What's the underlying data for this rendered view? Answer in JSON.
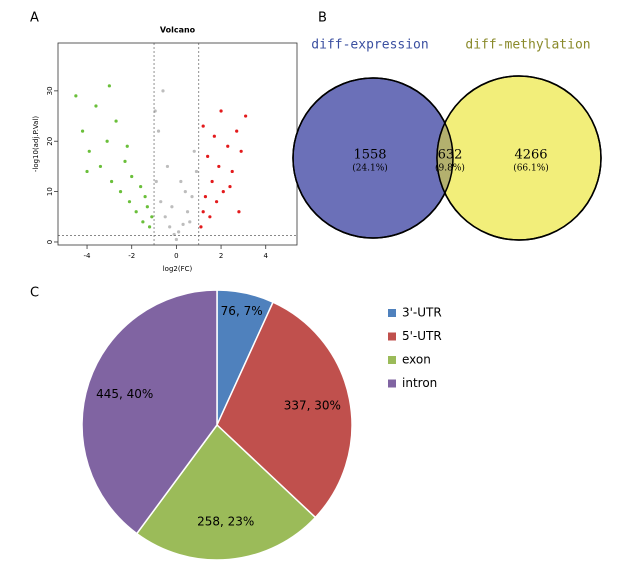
{
  "chart_data": [
    {
      "type": "scatter",
      "panel_label": "A",
      "title": "Volcano",
      "x_label": "log2(FC)",
      "y_label": "-log10(adj.P.Val)",
      "xlim": [
        -5.3,
        5.4
      ],
      "ylim": [
        -0.6,
        39.5
      ],
      "xticks": [
        -4,
        -2,
        0,
        2,
        4
      ],
      "yticks": [
        0,
        10,
        20,
        30
      ],
      "thresholds": {
        "x": [
          -1,
          1
        ],
        "y": 1.3
      },
      "series": [
        {
          "color": "#6abf3a",
          "x": [
            -4.5,
            -4.2,
            -3.9,
            -3.6,
            -3.4,
            -3.1,
            -2.9,
            -2.7,
            -2.5,
            -2.3,
            -2.1,
            -2.0,
            -1.8,
            -1.6,
            -1.5,
            -1.3,
            -1.2,
            -1.1,
            -3.0,
            -2.2,
            -1.4,
            -4.0
          ],
          "values": [
            29,
            22,
            18,
            27,
            15,
            20,
            12,
            24,
            10,
            16,
            8,
            13,
            6,
            11,
            4,
            7,
            3,
            5,
            31,
            19,
            9,
            14
          ]
        },
        {
          "color": "#bdbdbd",
          "x": [
            -0.9,
            -0.7,
            -0.5,
            -0.3,
            -0.1,
            0.1,
            0.3,
            0.5,
            0.7,
            0.9,
            -0.8,
            -0.4,
            0,
            0.4,
            0.8,
            -0.6,
            0.6,
            -0.2,
            0.2,
            -0.95
          ],
          "values": [
            12,
            8,
            5,
            3,
            1.5,
            2,
            3.5,
            6,
            9,
            14,
            22,
            15,
            0.5,
            10,
            18,
            30,
            4,
            7,
            12,
            26
          ]
        },
        {
          "color": "#e31a1c",
          "x": [
            1.1,
            1.2,
            1.3,
            1.5,
            1.6,
            1.8,
            1.9,
            2.1,
            2.3,
            2.5,
            2.7,
            2.9,
            3.1,
            1.4,
            1.7,
            2.0,
            2.4,
            2.8,
            1.2
          ],
          "values": [
            3,
            6,
            9,
            5,
            12,
            8,
            15,
            10,
            19,
            14,
            22,
            18,
            25,
            17,
            21,
            26,
            11,
            6,
            23
          ]
        }
      ]
    },
    {
      "type": "venn",
      "panel_label": "B",
      "sets": [
        {
          "name": "diff-expression",
          "color": "#6b70b8"
        },
        {
          "name": "diff-methylation",
          "color": "#f2ee7a"
        }
      ],
      "overlap_color": "#b3b06e",
      "values": [
        1558,
        632,
        4266
      ],
      "percent_labels": [
        "(24.1%)",
        "(9.8%)",
        "(66.1%)"
      ]
    },
    {
      "type": "pie",
      "panel_label": "C",
      "categories": [
        "3'-UTR",
        "5'-UTR",
        "exon",
        "intron"
      ],
      "values": [
        76,
        337,
        258,
        445
      ],
      "value_labels": [
        "76, 7%",
        "337, 30%",
        "258, 23%",
        "445, 40%"
      ],
      "colors": [
        "#4f81bd",
        "#c0504d",
        "#9bbb59",
        "#8064a2"
      ],
      "legend": "right"
    }
  ]
}
